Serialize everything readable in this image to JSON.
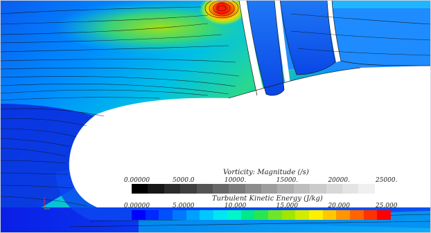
{
  "vorticity_legend": {
    "title": "Vorticity: Magnitude (/s)",
    "ticks": [
      "0.00000",
      "5000.0",
      "10000.",
      "15000.",
      "20000.",
      "25000."
    ],
    "colors": [
      "#000000",
      "#161616",
      "#2b2b2b",
      "#3f3f3f",
      "#545454",
      "#676767",
      "#7a7a7a",
      "#8c8c8c",
      "#9d9d9d",
      "#aeaeae",
      "#bdbdbd",
      "#cbcbcb",
      "#d8d8d8",
      "#e4e4e4",
      "#f0f0f0",
      "#ffffff"
    ]
  },
  "tke_legend": {
    "title": "Turbulent Kinetic Energy (J/kg)",
    "ticks": [
      "0.00000",
      "5.0000",
      "10.000",
      "15.000",
      "20.000",
      "25.000"
    ],
    "colors": [
      "#0000ff",
      "#0028ff",
      "#0050ff",
      "#0078ff",
      "#00a0ff",
      "#00c8ff",
      "#00e6f0",
      "#00f5c8",
      "#00e88c",
      "#28e650",
      "#6ee628",
      "#a0e600",
      "#d2eb00",
      "#fff000",
      "#ffc800",
      "#ff9600",
      "#ff6400",
      "#ff3200",
      "#ff0000"
    ]
  },
  "field_colors": {
    "low": "#0a2ee0",
    "mid": "#0096ff",
    "cyan": "#00c8e0",
    "green": "#3cd96e",
    "yellow": "#e8e600",
    "red": "#ff1a00"
  },
  "triad_icon": "axis-triad-icon"
}
